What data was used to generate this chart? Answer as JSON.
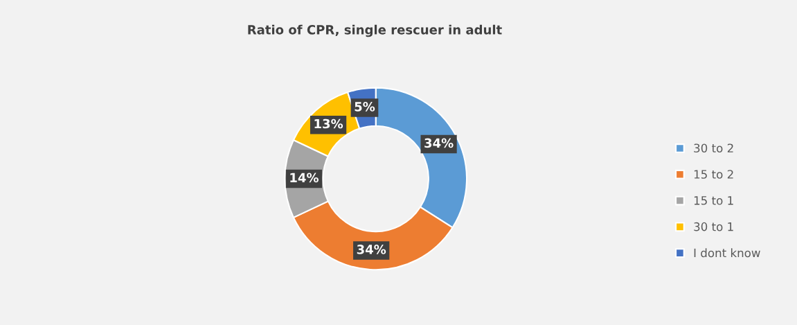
{
  "chart_data": {
    "type": "donut",
    "title": "Ratio of CPR, single rescuer in adult",
    "categories": [
      "30 to 2",
      "15 to 2",
      "15 to 1",
      "30 to 1",
      "I dont know"
    ],
    "values": [
      34,
      34,
      14,
      13,
      5
    ],
    "colors": [
      "#5b9bd5",
      "#ed7d31",
      "#a5a5a5",
      "#ffc000",
      "#4472c4"
    ],
    "value_labels": [
      "34%",
      "34%",
      "14%",
      "13%",
      "5%"
    ],
    "legend": "right"
  }
}
